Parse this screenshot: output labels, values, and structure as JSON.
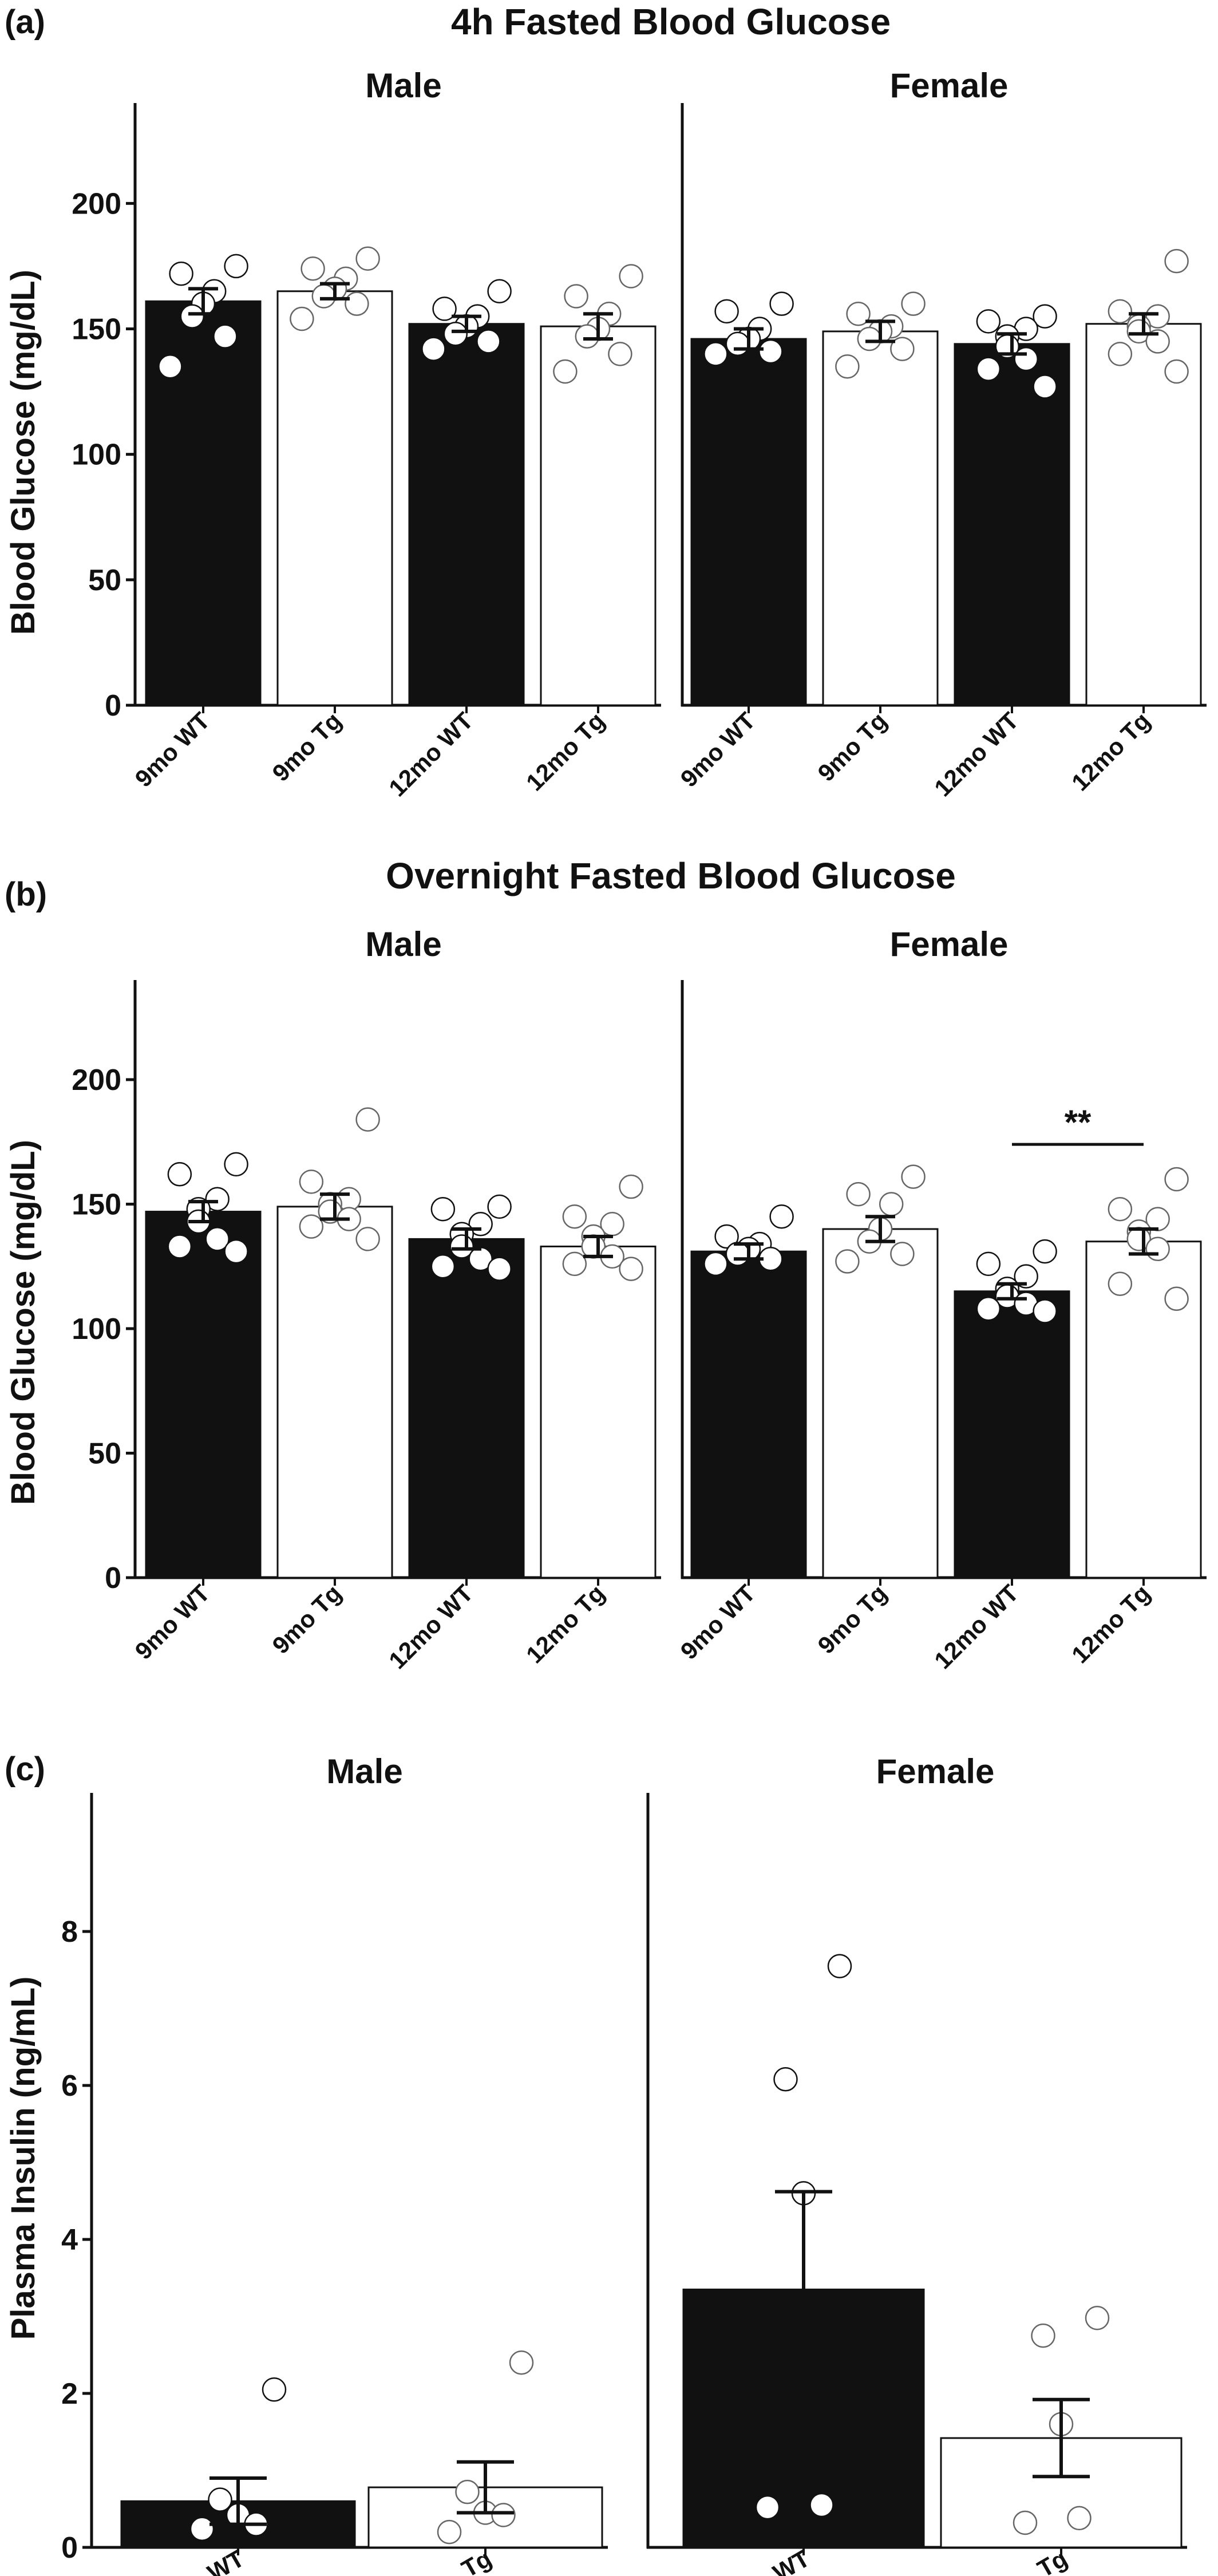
{
  "chart_data": [
    {
      "type": "bar",
      "panel_label": "(a)",
      "title": "4h  Fasted Blood Glucose",
      "ylabel": "Blood Glucose (mg/dL)",
      "xlabel": "",
      "ylim": [
        0,
        240
      ],
      "yticks": [
        "0",
        "50",
        "100",
        "150",
        "200"
      ],
      "yticks_values": [
        0,
        50,
        100,
        150,
        200
      ],
      "groups": [
        {
          "name": "Male",
          "categories": [
            "9mo WT",
            "9mo Tg",
            "12mo WT",
            "12mo Tg"
          ],
          "fills": [
            "#111111",
            "#ffffff",
            "#111111",
            "#ffffff"
          ],
          "values": [
            161,
            165,
            152,
            151
          ],
          "sem": [
            5,
            3,
            3,
            5
          ],
          "points": [
            [
              175,
              172,
              165,
              160,
              155,
              147,
              135
            ],
            [
              178,
              174,
              170,
              166,
              163,
              160,
              154
            ],
            [
              165,
              158,
              155,
              151,
              148,
              145,
              142
            ],
            [
              171,
              163,
              156,
              150,
              147,
              140,
              133
            ]
          ]
        },
        {
          "name": "Female",
          "categories": [
            "9mo WT",
            "9mo Tg",
            "12mo WT",
            "12mo Tg"
          ],
          "fills": [
            "#111111",
            "#ffffff",
            "#111111",
            "#ffffff"
          ],
          "values": [
            146,
            149,
            144,
            152
          ],
          "sem": [
            4,
            4,
            4,
            4
          ],
          "points": [
            [
              160,
              157,
              150,
              146,
              144,
              141,
              140
            ],
            [
              160,
              156,
              151,
              149,
              146,
              142,
              135
            ],
            [
              155,
              153,
              150,
              147,
              143,
              138,
              134,
              127
            ],
            [
              177,
              157,
              155,
              151,
              149,
              145,
              140,
              133
            ]
          ]
        }
      ],
      "annotations": []
    },
    {
      "type": "bar",
      "panel_label": "(b)",
      "title": "Overnight Fasted Blood Glucose",
      "ylabel": "Blood Glucose (mg/dL)",
      "xlabel": "",
      "ylim": [
        0,
        240
      ],
      "yticks": [
        "0",
        "50",
        "100",
        "150",
        "200"
      ],
      "yticks_values": [
        0,
        50,
        100,
        150,
        200
      ],
      "groups": [
        {
          "name": "Male",
          "categories": [
            "9mo WT",
            "9mo Tg",
            "12mo WT",
            "12mo Tg"
          ],
          "fills": [
            "#111111",
            "#ffffff",
            "#111111",
            "#ffffff"
          ],
          "values": [
            147,
            149,
            136,
            133
          ],
          "sem": [
            4,
            5,
            4,
            4
          ],
          "points": [
            [
              166,
              162,
              152,
              148,
              143,
              136,
              133,
              131
            ],
            [
              184,
              159,
              152,
              150,
              147,
              144,
              141,
              136
            ],
            [
              149,
              148,
              142,
              138,
              133,
              128,
              125,
              124
            ],
            [
              157,
              145,
              142,
              137,
              133,
              129,
              126,
              124
            ]
          ]
        },
        {
          "name": "Female",
          "categories": [
            "9mo WT",
            "9mo Tg",
            "12mo WT",
            "12mo Tg"
          ],
          "fills": [
            "#111111",
            "#ffffff",
            "#111111",
            "#ffffff"
          ],
          "values": [
            131,
            140,
            115,
            135
          ],
          "sem": [
            3,
            5,
            3,
            5
          ],
          "points": [
            [
              145,
              137,
              134,
              132,
              130,
              128,
              126
            ],
            [
              161,
              154,
              150,
              140,
              135,
              130,
              127
            ],
            [
              131,
              126,
              121,
              116,
              113,
              110,
              108,
              107
            ],
            [
              160,
              148,
              144,
              139,
              136,
              132,
              118,
              112
            ]
          ]
        }
      ],
      "annotations": [
        {
          "text": "**",
          "group": 1,
          "from_index": 2,
          "to_index": 3,
          "y": 174
        }
      ]
    },
    {
      "type": "bar",
      "panel_label": "(c)",
      "title": "",
      "ylabel": "Plasma Insulin (ng/mL)",
      "xlabel": "",
      "ylim": [
        0,
        9.8
      ],
      "yticks": [
        "0",
        "2",
        "4",
        "6",
        "8"
      ],
      "yticks_values": [
        0,
        2,
        4,
        6,
        8
      ],
      "groups": [
        {
          "name": "Male",
          "categories": [
            "WT",
            "Tg"
          ],
          "fills": [
            "#111111",
            "#ffffff"
          ],
          "values": [
            0.6,
            0.78
          ],
          "sem": [
            0.3,
            0.33
          ],
          "points": [
            [
              2.05,
              0.62,
              0.42,
              0.3,
              0.24
            ],
            [
              2.4,
              0.72,
              0.45,
              0.42,
              0.2
            ]
          ]
        },
        {
          "name": "Female",
          "categories": [
            "WT",
            "Tg"
          ],
          "fills": [
            "#111111",
            "#ffffff"
          ],
          "values": [
            3.35,
            1.42
          ],
          "sem": [
            1.27,
            0.5
          ],
          "points": [
            [
              7.55,
              6.08,
              4.6,
              0.55,
              0.52
            ],
            [
              2.98,
              2.75,
              1.6,
              0.38,
              0.32
            ]
          ]
        }
      ],
      "annotations": []
    }
  ]
}
